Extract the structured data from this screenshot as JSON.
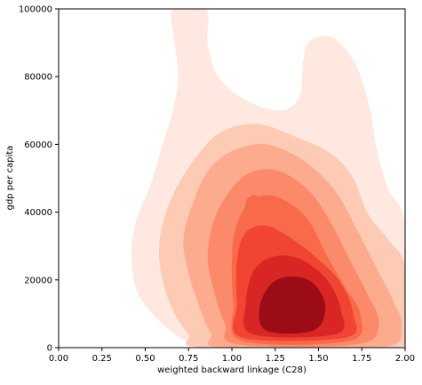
{
  "chart_data": {
    "type": "kde-density-contour",
    "title": "",
    "xlabel": "weighted backward linkage (C28)",
    "ylabel": "gdp per capita",
    "xlim": [
      0.0,
      2.0
    ],
    "ylim": [
      0,
      100000
    ],
    "x_ticks": [
      {
        "value": 0.0,
        "label": "0.00"
      },
      {
        "value": 0.25,
        "label": "0.25"
      },
      {
        "value": 0.5,
        "label": "0.50"
      },
      {
        "value": 0.75,
        "label": "0.75"
      },
      {
        "value": 1.0,
        "label": "1.00"
      },
      {
        "value": 1.25,
        "label": "1.25"
      },
      {
        "value": 1.5,
        "label": "1.50"
      },
      {
        "value": 1.75,
        "label": "1.75"
      },
      {
        "value": 2.0,
        "label": "2.00"
      }
    ],
    "y_ticks": [
      {
        "value": 0,
        "label": "0"
      },
      {
        "value": 20000,
        "label": "20000"
      },
      {
        "value": 40000,
        "label": "40000"
      },
      {
        "value": 60000,
        "label": "60000"
      },
      {
        "value": 80000,
        "label": "80000"
      },
      {
        "value": 100000,
        "label": "100000"
      }
    ],
    "grid": false,
    "legend": "none",
    "levels": [
      {
        "color": "#fee8df",
        "regions": [
          [
            [
              0.95,
              0
            ],
            [
              1.5,
              0
            ],
            [
              1.9,
              0
            ],
            [
              2.0,
              0
            ],
            [
              2.0,
              36000
            ],
            [
              1.9,
              47000
            ],
            [
              1.83,
              60000
            ],
            [
              1.8,
              70000
            ],
            [
              1.72,
              83000
            ],
            [
              1.62,
              90000
            ],
            [
              1.54,
              92000
            ],
            [
              1.44,
              90000
            ],
            [
              1.41,
              84000
            ],
            [
              1.39,
              74000
            ],
            [
              1.28,
              70000
            ],
            [
              1.08,
              73000
            ],
            [
              0.92,
              80000
            ],
            [
              0.86,
              90000
            ],
            [
              0.85,
              100000
            ],
            [
              0.66,
              100000
            ],
            [
              0.67,
              90000
            ],
            [
              0.69,
              80000
            ],
            [
              0.66,
              70000
            ],
            [
              0.6,
              60000
            ],
            [
              0.53,
              48000
            ],
            [
              0.45,
              38000
            ],
            [
              0.42,
              28000
            ],
            [
              0.45,
              17000
            ],
            [
              0.56,
              9000
            ],
            [
              0.7,
              3000
            ],
            [
              0.82,
              1000
            ]
          ]
        ]
      },
      {
        "color": "#fdcab4",
        "regions": [
          [
            [
              0.84,
              0
            ],
            [
              1.92,
              0
            ],
            [
              2.0,
              5000
            ],
            [
              2.0,
              24000
            ],
            [
              1.9,
              32000
            ],
            [
              1.78,
              40000
            ],
            [
              1.7,
              50000
            ],
            [
              1.58,
              57000
            ],
            [
              1.38,
              62000
            ],
            [
              1.15,
              66000
            ],
            [
              0.95,
              64000
            ],
            [
              0.82,
              58000
            ],
            [
              0.7,
              49000
            ],
            [
              0.62,
              40000
            ],
            [
              0.58,
              30000
            ],
            [
              0.6,
              20000
            ],
            [
              0.66,
              11000
            ],
            [
              0.75,
              4000
            ]
          ]
        ]
      },
      {
        "color": "#fcab8f",
        "regions": [
          [
            [
              0.95,
              0
            ],
            [
              1.85,
              0
            ],
            [
              1.98,
              6000
            ],
            [
              1.93,
              14000
            ],
            [
              1.83,
              24000
            ],
            [
              1.72,
              35000
            ],
            [
              1.6,
              46000
            ],
            [
              1.42,
              55000
            ],
            [
              1.2,
              60000
            ],
            [
              1.0,
              58000
            ],
            [
              0.86,
              52000
            ],
            [
              0.77,
              42000
            ],
            [
              0.72,
              32000
            ],
            [
              0.75,
              22000
            ],
            [
              0.82,
              11000
            ],
            [
              0.88,
              4000
            ]
          ]
        ]
      },
      {
        "color": "#fb8a6a",
        "regions": [
          [
            [
              1.03,
              1000
            ],
            [
              1.72,
              1000
            ],
            [
              1.85,
              7000
            ],
            [
              1.78,
              16000
            ],
            [
              1.68,
              26000
            ],
            [
              1.57,
              37000
            ],
            [
              1.45,
              46000
            ],
            [
              1.28,
              52000
            ],
            [
              1.12,
              52000
            ],
            [
              1.0,
              47000
            ],
            [
              0.9,
              38000
            ],
            [
              0.86,
              27000
            ],
            [
              0.9,
              16000
            ],
            [
              0.96,
              7000
            ]
          ]
        ]
      },
      {
        "color": "#f96a4a",
        "regions": [
          [
            [
              1.06,
              2000
            ],
            [
              1.68,
              2000
            ],
            [
              1.74,
              10000
            ],
            [
              1.65,
              18000
            ],
            [
              1.55,
              27000
            ],
            [
              1.45,
              37000
            ],
            [
              1.35,
              42000
            ],
            [
              1.22,
              45000
            ],
            [
              1.1,
              43000
            ],
            [
              1.02,
              35000
            ],
            [
              1.0,
              25000
            ],
            [
              1.01,
              13000
            ]
          ],
          [
            [
              1.09,
              44000
            ],
            [
              1.08,
              41000
            ],
            [
              1.11,
              37000
            ],
            [
              1.15,
              37000
            ],
            [
              1.17,
              42000
            ],
            [
              1.14,
              45000
            ]
          ]
        ]
      },
      {
        "color": "#f14432",
        "regions": [
          [
            [
              1.06,
              3000
            ],
            [
              1.66,
              3000
            ],
            [
              1.7,
              10000
            ],
            [
              1.63,
              19000
            ],
            [
              1.5,
              26000
            ],
            [
              1.35,
              32000
            ],
            [
              1.2,
              36000
            ],
            [
              1.08,
              34000
            ],
            [
              1.03,
              26000
            ],
            [
              1.03,
              13000
            ]
          ]
        ]
      },
      {
        "color": "#d92624",
        "regions": [
          [
            [
              1.12,
              4000
            ],
            [
              1.6,
              4000
            ],
            [
              1.63,
              11000
            ],
            [
              1.55,
              20000
            ],
            [
              1.4,
              26000
            ],
            [
              1.25,
              27000
            ],
            [
              1.13,
              23000
            ],
            [
              1.08,
              13000
            ]
          ]
        ]
      },
      {
        "color": "#9b0c16",
        "regions": [
          [
            [
              1.2,
              5000
            ],
            [
              1.47,
              5000
            ],
            [
              1.54,
              12000
            ],
            [
              1.47,
              19000
            ],
            [
              1.35,
              21000
            ],
            [
              1.23,
              19000
            ],
            [
              1.16,
              12000
            ]
          ]
        ]
      }
    ]
  }
}
